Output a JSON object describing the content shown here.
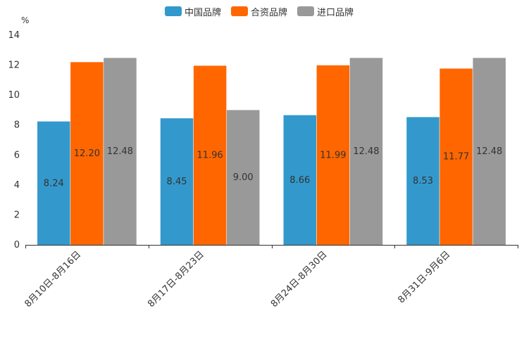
{
  "chart_data": {
    "type": "bar",
    "unit_label": "%",
    "categories": [
      "8月10日-8月16日",
      "8月17日-8月23日",
      "8月24日-8月30日",
      "8月31日-9月6日"
    ],
    "series": [
      {
        "name": "中国品牌",
        "color": "#3399cc",
        "values": [
          8.24,
          8.45,
          8.66,
          8.53
        ]
      },
      {
        "name": "合资品牌",
        "color": "#ff6600",
        "values": [
          12.2,
          11.96,
          11.99,
          11.77
        ]
      },
      {
        "name": "进口品牌",
        "color": "#999999",
        "values": [
          12.48,
          9.0,
          12.48,
          12.48
        ]
      }
    ],
    "value_labels": [
      [
        "8.24",
        "8.45",
        "8.66",
        "8.53"
      ],
      [
        "12.20",
        "11.96",
        "11.99",
        "11.77"
      ],
      [
        "12.48",
        "9.00",
        "12.48",
        "12.48"
      ]
    ],
    "y_ticks": [
      "0",
      "2",
      "4",
      "6",
      "8",
      "10",
      "12",
      "14"
    ],
    "ylim": [
      0,
      14
    ],
    "grid": false,
    "legend_position": "top-center"
  }
}
